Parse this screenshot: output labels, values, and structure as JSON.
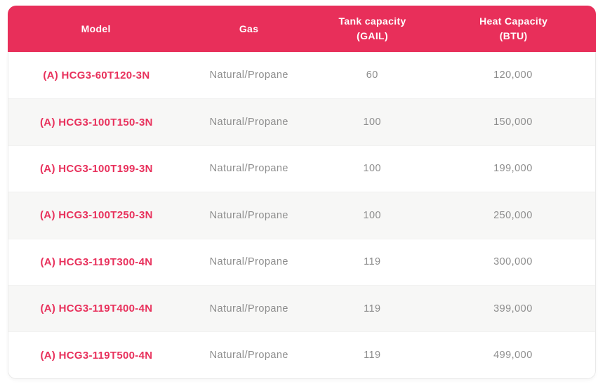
{
  "colors": {
    "header_bg": "#e82f5a",
    "header_text": "#ffffff",
    "accent": "#e8315c",
    "body_text": "#8d8d8d",
    "row_alt_bg": "#f7f7f6",
    "border": "#e9e9e9",
    "page_bg": "#ffffff"
  },
  "table": {
    "columns": [
      {
        "id": "model",
        "label": "Model",
        "label2": ""
      },
      {
        "id": "gas",
        "label": "Gas",
        "label2": ""
      },
      {
        "id": "tank",
        "label": "Tank capacity",
        "label2": "(GAIL)"
      },
      {
        "id": "heat",
        "label": "Heat Capacity",
        "label2": "(BTU)"
      }
    ],
    "rows": [
      {
        "model": "(A) HCG3-60T120-3N",
        "gas": "Natural/Propane",
        "tank": "60",
        "heat": "120,000"
      },
      {
        "model": "(A) HCG3-100T150-3N",
        "gas": "Natural/Propane",
        "tank": "100",
        "heat": "150,000"
      },
      {
        "model": "(A) HCG3-100T199-3N",
        "gas": "Natural/Propane",
        "tank": "100",
        "heat": "199,000"
      },
      {
        "model": "(A) HCG3-100T250-3N",
        "gas": "Natural/Propane",
        "tank": "100",
        "heat": "250,000"
      },
      {
        "model": "(A) HCG3-119T300-4N",
        "gas": "Natural/Propane",
        "tank": "119",
        "heat": "300,000"
      },
      {
        "model": "(A) HCG3-119T400-4N",
        "gas": "Natural/Propane",
        "tank": "119",
        "heat": "399,000"
      },
      {
        "model": "(A) HCG3-119T500-4N",
        "gas": "Natural/Propane",
        "tank": "119",
        "heat": "499,000"
      }
    ]
  }
}
